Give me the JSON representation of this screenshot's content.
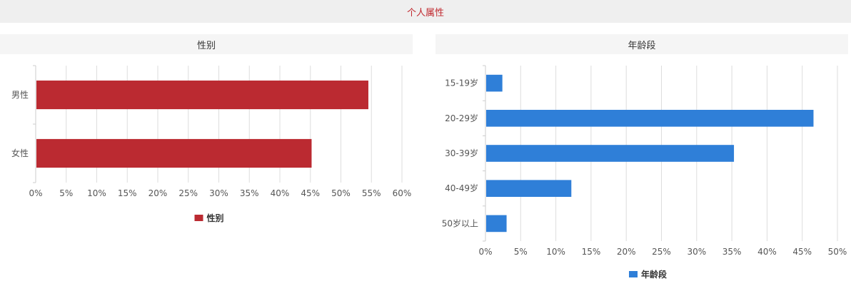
{
  "page": {
    "title": "个人属性"
  },
  "chart_data": [
    {
      "type": "bar",
      "orientation": "horizontal",
      "title": "性别",
      "categories": [
        "男性",
        "女性"
      ],
      "series": [
        {
          "name": "性别",
          "values": [
            54.5,
            45.2
          ],
          "color": "#bb2a31"
        }
      ],
      "xlim": [
        0,
        60
      ],
      "ticks": [
        "0%",
        "5%",
        "10%",
        "15%",
        "20%",
        "25%",
        "30%",
        "35%",
        "40%",
        "45%",
        "50%",
        "55%",
        "60%"
      ],
      "grid": true,
      "legend": "bottom"
    },
    {
      "type": "bar",
      "orientation": "horizontal",
      "title": "年龄段",
      "categories": [
        "15-19岁",
        "20-29岁",
        "30-39岁",
        "40-49岁",
        "50岁以上"
      ],
      "series": [
        {
          "name": "年龄段",
          "values": [
            2.4,
            46.6,
            35.3,
            12.2,
            3.0
          ],
          "color": "#2f7fd8"
        }
      ],
      "xlim": [
        0,
        50
      ],
      "ticks": [
        "0%",
        "5%",
        "10%",
        "15%",
        "20%",
        "25%",
        "30%",
        "35%",
        "40%",
        "45%",
        "50%"
      ],
      "grid": true,
      "legend": "bottom"
    }
  ]
}
